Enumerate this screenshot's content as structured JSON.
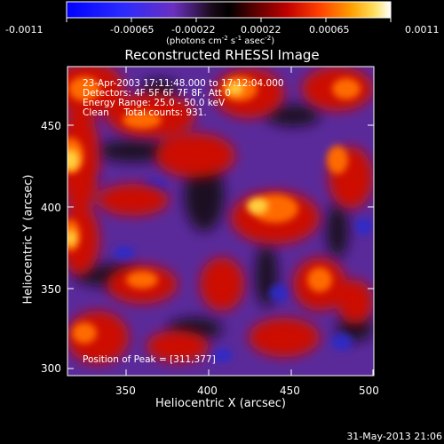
{
  "colorbar": {
    "ticks": [
      "-0.0011",
      "-0.00065",
      "-0.00022",
      "0.00022",
      "0.00065",
      "0.0011"
    ],
    "units_label": "(photons cm",
    "units_exp1": "-2",
    "units_mid": " s",
    "units_exp2": "-1",
    "units_end": " asec",
    "units_exp3": "-2",
    "units_close": ")"
  },
  "title": "Reconstructed RHESSI Image",
  "info": {
    "line1": "23-Apr-2003 17:11:48.000 to 17:12:04.000",
    "line2": "Detectors: 4F 5F 6F 7F 8F, Att 0",
    "line3": "Energy Range: 25.0 - 50.0 keV",
    "line4": "Clean     Total counts: 931.",
    "peak": "Position of Peak = [311,377]"
  },
  "axes": {
    "xlabel": "Heliocentric X (arcsec)",
    "ylabel": "Heliocentric Y (arcsec)",
    "xticks": [
      "350",
      "400",
      "450",
      "500"
    ],
    "yticks": [
      "300",
      "350",
      "400",
      "450"
    ]
  },
  "footer": {
    "timestamp": "31-May-2013 21:06"
  },
  "colors": {
    "bg": "#000000",
    "text": "#ffffff"
  }
}
